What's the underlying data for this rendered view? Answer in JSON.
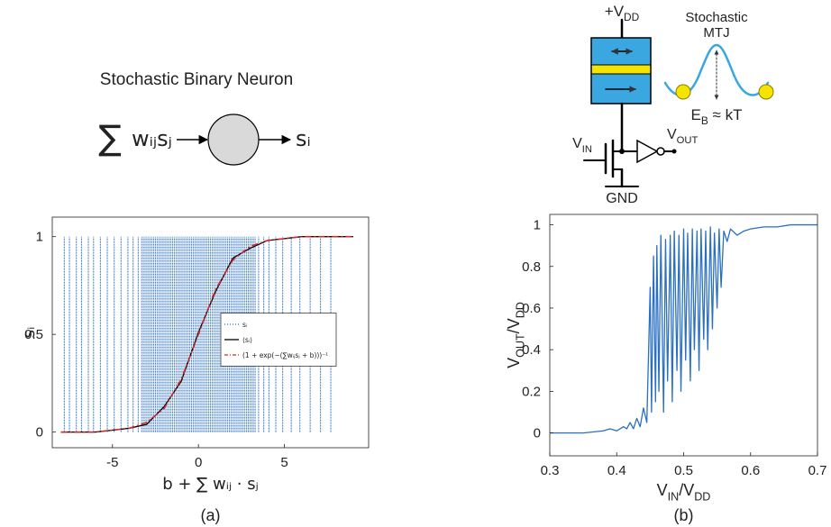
{
  "neuron": {
    "title": "Stochastic Binary Neuron",
    "sum": "∑",
    "input": "wᵢⱼsⱼ",
    "output": "sᵢ"
  },
  "circuit": {
    "supply": [
      "+V",
      "DD"
    ],
    "mtj_label": [
      "Stochastic",
      "MTJ"
    ],
    "barrier": [
      "E",
      "B",
      " ≈ kT"
    ],
    "input": [
      "V",
      "IN"
    ],
    "output": [
      "V",
      "OUT"
    ],
    "ground": "GND"
  },
  "chart_data": [
    {
      "type": "line",
      "caption": "(a)",
      "x_label": "b + ∑ wᵢⱼ · sⱼ",
      "y_label": "sᵢ",
      "xlim": [
        -8.5,
        9.9
      ],
      "ylim": [
        -0.08,
        1.1
      ],
      "xticks": [
        -5,
        0,
        5
      ],
      "yticks": [
        0,
        0.5,
        1
      ],
      "legend": "center right",
      "series": [
        {
          "name": "sᵢ",
          "style": "stem",
          "color": "#2a6fc0",
          "x": [
            -7.8,
            -7.5,
            -7.1,
            -6.8,
            -6.4,
            -6.1,
            -5.7,
            -5.3,
            -4.9,
            -4.5,
            -4.1,
            -3.8,
            -3.5,
            -3.3,
            -3.2,
            -3.1,
            -3,
            -2.9,
            -2.8,
            -2.7,
            -2.6,
            -2.5,
            -2.4,
            -2.3,
            -2.2,
            -2.1,
            -2,
            -1.9,
            -1.8,
            -1.7,
            -1.6,
            -1.5,
            -1.4,
            -1.3,
            -1.2,
            -1.1,
            -1,
            -0.9,
            -0.8,
            -0.7,
            -0.6,
            -0.5,
            -0.4,
            -0.3,
            -0.2,
            -0.1,
            0,
            0.1,
            0.2,
            0.3,
            0.4,
            0.5,
            0.6,
            0.7,
            0.8,
            0.9,
            1,
            1.1,
            1.2,
            1.3,
            1.4,
            1.5,
            1.6,
            1.7,
            1.8,
            1.9,
            2,
            2.1,
            2.2,
            2.3,
            2.4,
            2.5,
            2.6,
            2.7,
            2.8,
            2.9,
            3,
            3.1,
            3.2,
            3.3,
            3.5,
            3.8,
            4.1,
            4.5,
            4.9,
            5.4,
            5.9,
            6.5,
            7.1,
            7.7
          ],
          "values": [
            1,
            1,
            1,
            1,
            1,
            1,
            1,
            1,
            1,
            1,
            1,
            1,
            1,
            1,
            1,
            1,
            1,
            1,
            1,
            1,
            1,
            1,
            1,
            1,
            1,
            1,
            1,
            1,
            1,
            1,
            1,
            1,
            1,
            1,
            1,
            1,
            1,
            1,
            1,
            1,
            1,
            1,
            1,
            1,
            1,
            1,
            1,
            1,
            1,
            1,
            1,
            1,
            1,
            1,
            1,
            1,
            1,
            1,
            1,
            1,
            1,
            1,
            1,
            1,
            1,
            1,
            1,
            1,
            1,
            1,
            1,
            1,
            1,
            1,
            1,
            1,
            1,
            1,
            1,
            1,
            1,
            1,
            1,
            1,
            1,
            1,
            1,
            1,
            1,
            1
          ]
        },
        {
          "name": "⟨sᵢ⟩",
          "style": "solid",
          "color": "#000000",
          "x": [
            -8,
            -7,
            -6,
            -5,
            -4,
            -3,
            -2,
            -1,
            0,
            1,
            2,
            3,
            4,
            5,
            6,
            7,
            8,
            9
          ],
          "values": [
            0,
            0,
            0,
            0.01,
            0.02,
            0.04,
            0.13,
            0.26,
            0.51,
            0.72,
            0.89,
            0.94,
            0.98,
            0.99,
            1,
            1,
            1,
            1
          ]
        },
        {
          "name": "(1 + exp(−(∑wᵢⱼsⱼ + b)))⁻¹",
          "style": "dashdot",
          "color": "#d62728",
          "x": [
            -8,
            -7,
            -6,
            -5,
            -4,
            -3,
            -2,
            -1,
            0,
            1,
            2,
            3,
            4,
            5,
            6,
            7,
            8,
            9
          ],
          "values": [
            0,
            0,
            0,
            0.01,
            0.02,
            0.05,
            0.12,
            0.27,
            0.5,
            0.73,
            0.88,
            0.95,
            0.98,
            0.99,
            1,
            1,
            1,
            1
          ]
        }
      ]
    },
    {
      "type": "line",
      "caption": "(b)",
      "x_label": [
        "V",
        "IN",
        "/V",
        "DD"
      ],
      "y_label": [
        "V",
        "OUT",
        "/V",
        "DD"
      ],
      "xlim": [
        0.3,
        0.7
      ],
      "ylim": [
        -0.11,
        1.05
      ],
      "xticks": [
        0.3,
        0.4,
        0.5,
        0.6,
        0.7
      ],
      "yticks": [
        0,
        0.2,
        0.4,
        0.6,
        0.8,
        1
      ],
      "series": [
        {
          "style": "solid",
          "color": "#2a6fc0",
          "x": [
            0.3,
            0.35,
            0.38,
            0.39,
            0.4,
            0.41,
            0.415,
            0.42,
            0.425,
            0.43,
            0.435,
            0.44,
            0.445,
            0.45,
            0.452,
            0.455,
            0.458,
            0.46,
            0.463,
            0.466,
            0.47,
            0.473,
            0.476,
            0.48,
            0.483,
            0.486,
            0.49,
            0.493,
            0.496,
            0.5,
            0.503,
            0.506,
            0.51,
            0.513,
            0.516,
            0.52,
            0.523,
            0.526,
            0.53,
            0.533,
            0.536,
            0.54,
            0.543,
            0.546,
            0.55,
            0.553,
            0.556,
            0.56,
            0.565,
            0.57,
            0.58,
            0.59,
            0.6,
            0.62,
            0.64,
            0.66,
            0.68,
            0.7
          ],
          "values": [
            0,
            0,
            0.01,
            0.02,
            0.01,
            0.03,
            0.02,
            0.05,
            0.02,
            0.07,
            0.03,
            0.12,
            0.05,
            0.7,
            0.1,
            0.85,
            0.15,
            0.9,
            0.2,
            0.95,
            0.1,
            0.93,
            0.25,
            0.95,
            0.15,
            0.97,
            0.3,
            0.95,
            0.2,
            0.98,
            0.35,
            0.96,
            0.25,
            0.98,
            0.4,
            0.97,
            0.3,
            0.98,
            0.45,
            0.97,
            0.4,
            0.99,
            0.5,
            0.96,
            0.6,
            0.98,
            0.7,
            0.97,
            0.92,
            0.98,
            0.95,
            0.97,
            0.98,
            0.99,
            0.99,
            1,
            1,
            1
          ]
        }
      ]
    }
  ]
}
